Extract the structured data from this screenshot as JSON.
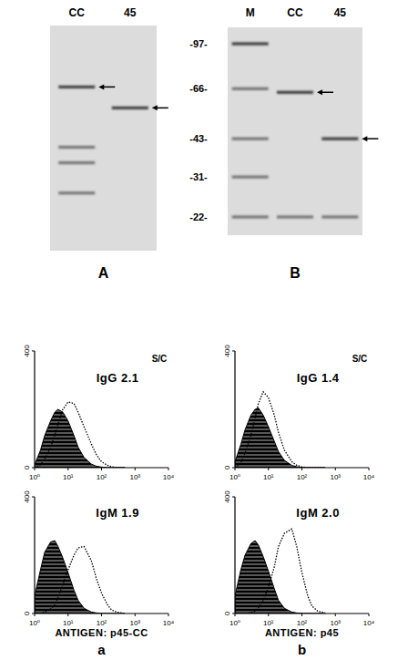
{
  "gels": [
    {
      "label": "A",
      "lanes": [
        {
          "name": "CC",
          "bands": [
            67,
            40,
            35,
            27
          ],
          "arrow": 67
        },
        {
          "name": "45",
          "bands": [
            56
          ],
          "arrow": 56
        }
      ]
    },
    {
      "label": "B",
      "markers": [
        {
          "value": 97,
          "label": "-97-"
        },
        {
          "value": 66,
          "label": "-66-"
        },
        {
          "value": 43,
          "label": "-43-"
        },
        {
          "value": 31,
          "label": "-31-"
        },
        {
          "value": 22,
          "label": "-22-"
        }
      ],
      "lanes": [
        {
          "name": "M",
          "bands": [
            97,
            66,
            43,
            31,
            22
          ]
        },
        {
          "name": "CC",
          "bands": [
            64,
            22
          ],
          "arrow": 64
        },
        {
          "name": "45",
          "bands": [
            43,
            22
          ],
          "arrow": 43
        }
      ]
    }
  ],
  "columns": [
    {
      "label": "a",
      "xlabel": "ANTIGEN: p45-CC"
    },
    {
      "label": "b",
      "xlabel": "ANTIGEN: p45"
    }
  ],
  "chart_data": [
    {
      "type": "histogram",
      "title": "IgG 2.1",
      "subtitle": "S/C",
      "log": "x",
      "x": [
        1,
        1.5,
        2,
        3,
        4,
        5,
        7,
        10,
        15,
        20,
        30,
        50,
        70,
        100,
        150,
        200,
        300,
        500
      ],
      "xlim": [
        1,
        10000
      ],
      "ylim": [
        0,
        400
      ],
      "xticks": [
        {
          "value": 1,
          "label": "10⁰"
        },
        {
          "value": 10,
          "label": "10¹"
        },
        {
          "value": 100,
          "label": "10²"
        },
        {
          "value": 1000,
          "label": "10³"
        },
        {
          "value": 10000,
          "label": "10⁴"
        }
      ],
      "yticks": [
        0,
        400
      ],
      "series": [
        {
          "type": "area",
          "color": "#000000",
          "values": [
            10,
            60,
            110,
            160,
            190,
            200,
            190,
            160,
            110,
            70,
            35,
            12,
            5,
            2,
            0,
            0,
            0,
            0
          ]
        },
        {
          "type": "line",
          "color": "#000000",
          "line_style": "dotted",
          "values": [
            0,
            10,
            30,
            70,
            110,
            150,
            200,
            225,
            220,
            190,
            140,
            80,
            45,
            20,
            8,
            3,
            0,
            0
          ]
        }
      ]
    },
    {
      "type": "histogram",
      "title": "IgG 1.4",
      "subtitle": "S/C",
      "log": "x",
      "x": [
        1,
        1.5,
        2,
        3,
        4,
        5,
        7,
        10,
        15,
        20,
        30,
        50,
        70,
        100,
        150,
        200,
        300,
        500
      ],
      "xlim": [
        1,
        10000
      ],
      "ylim": [
        0,
        400
      ],
      "xticks": [
        {
          "value": 1,
          "label": "10⁰"
        },
        {
          "value": 10,
          "label": "10¹"
        },
        {
          "value": 100,
          "label": "10²"
        },
        {
          "value": 1000,
          "label": "10³"
        },
        {
          "value": 10000,
          "label": "10⁴"
        }
      ],
      "yticks": [
        0,
        400
      ],
      "series": [
        {
          "type": "area",
          "color": "#000000",
          "values": [
            20,
            80,
            130,
            180,
            200,
            205,
            180,
            140,
            90,
            55,
            25,
            8,
            3,
            0,
            0,
            0,
            0,
            0
          ]
        },
        {
          "type": "line",
          "color": "#000000",
          "line_style": "dotted",
          "values": [
            0,
            15,
            50,
            110,
            170,
            220,
            260,
            240,
            180,
            120,
            60,
            20,
            8,
            3,
            0,
            0,
            0,
            0
          ]
        }
      ]
    },
    {
      "type": "histogram",
      "title": "IgM 1.9",
      "log": "x",
      "x": [
        1,
        1.5,
        2,
        3,
        4,
        5,
        7,
        10,
        15,
        20,
        30,
        50,
        70,
        100,
        150,
        200,
        300,
        500
      ],
      "xlim": [
        1,
        10000
      ],
      "ylim": [
        0,
        400
      ],
      "xticks": [
        {
          "value": 1,
          "label": "10⁰"
        },
        {
          "value": 10,
          "label": "10¹"
        },
        {
          "value": 100,
          "label": "10²"
        },
        {
          "value": 1000,
          "label": "10³"
        },
        {
          "value": 10000,
          "label": "10⁴"
        }
      ],
      "yticks": [
        0,
        400
      ],
      "series": [
        {
          "type": "area",
          "color": "#000000",
          "values": [
            60,
            150,
            210,
            245,
            250,
            230,
            190,
            140,
            80,
            45,
            18,
            5,
            2,
            0,
            0,
            0,
            0,
            0
          ]
        },
        {
          "type": "line",
          "color": "#000000",
          "line_style": "dotted",
          "values": [
            0,
            0,
            5,
            15,
            30,
            55,
            100,
            150,
            200,
            225,
            230,
            180,
            120,
            70,
            30,
            12,
            4,
            0
          ]
        }
      ]
    },
    {
      "type": "histogram",
      "title": "IgM 2.0",
      "log": "x",
      "x": [
        1,
        1.5,
        2,
        3,
        4,
        5,
        7,
        10,
        15,
        20,
        30,
        50,
        70,
        100,
        150,
        200,
        300,
        500
      ],
      "xlim": [
        1,
        10000
      ],
      "ylim": [
        0,
        400
      ],
      "xticks": [
        {
          "value": 1,
          "label": "10⁰"
        },
        {
          "value": 10,
          "label": "10¹"
        },
        {
          "value": 100,
          "label": "10²"
        },
        {
          "value": 1000,
          "label": "10³"
        },
        {
          "value": 10000,
          "label": "10⁴"
        }
      ],
      "yticks": [
        0,
        400
      ],
      "series": [
        {
          "type": "area",
          "color": "#000000",
          "values": [
            60,
            150,
            200,
            240,
            250,
            235,
            195,
            145,
            85,
            45,
            18,
            5,
            2,
            0,
            0,
            0,
            0,
            0
          ]
        },
        {
          "type": "line",
          "color": "#000000",
          "line_style": "dotted",
          "values": [
            0,
            0,
            0,
            3,
            8,
            20,
            45,
            90,
            160,
            230,
            275,
            290,
            230,
            140,
            60,
            25,
            8,
            2
          ]
        }
      ]
    }
  ]
}
